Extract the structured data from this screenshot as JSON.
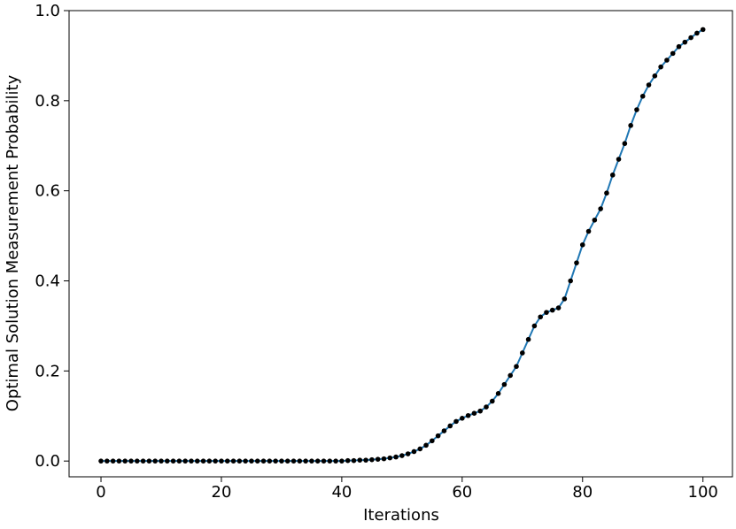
{
  "chart_data": {
    "type": "line",
    "xlabel": "Iterations",
    "ylabel": "Optimal Solution Measurement Probability",
    "x": [
      0,
      1,
      2,
      3,
      4,
      5,
      6,
      7,
      8,
      9,
      10,
      11,
      12,
      13,
      14,
      15,
      16,
      17,
      18,
      19,
      20,
      21,
      22,
      23,
      24,
      25,
      26,
      27,
      28,
      29,
      30,
      31,
      32,
      33,
      34,
      35,
      36,
      37,
      38,
      39,
      40,
      41,
      42,
      43,
      44,
      45,
      46,
      47,
      48,
      49,
      50,
      51,
      52,
      53,
      54,
      55,
      56,
      57,
      58,
      59,
      60,
      61,
      62,
      63,
      64,
      65,
      66,
      67,
      68,
      69,
      70,
      71,
      72,
      73,
      74,
      75,
      76,
      77,
      78,
      79,
      80,
      81,
      82,
      83,
      84,
      85,
      86,
      87,
      88,
      89,
      90,
      91,
      92,
      93,
      94,
      95,
      96,
      97,
      98,
      99,
      100
    ],
    "series": [
      {
        "color": "#1f77b4",
        "marker_color": "#000000",
        "values": [
          0,
          0,
          0,
          0,
          0,
          0,
          0,
          0,
          0,
          0,
          0,
          0,
          0,
          0,
          0,
          0,
          0,
          0,
          0,
          0,
          0,
          0,
          0,
          0,
          0,
          0,
          0,
          0,
          0,
          0,
          0,
          0,
          0,
          0,
          0,
          0,
          0,
          0,
          0,
          0,
          0,
          0.001,
          0.001,
          0.002,
          0.002,
          0.003,
          0.004,
          0.005,
          0.007,
          0.009,
          0.012,
          0.016,
          0.021,
          0.027,
          0.035,
          0.045,
          0.056,
          0.067,
          0.078,
          0.088,
          0.095,
          0.101,
          0.106,
          0.111,
          0.12,
          0.133,
          0.15,
          0.17,
          0.19,
          0.21,
          0.24,
          0.27,
          0.3,
          0.32,
          0.33,
          0.335,
          0.34,
          0.36,
          0.4,
          0.44,
          0.48,
          0.51,
          0.535,
          0.56,
          0.595,
          0.635,
          0.67,
          0.705,
          0.745,
          0.78,
          0.81,
          0.835,
          0.855,
          0.875,
          0.89,
          0.905,
          0.92,
          0.93,
          0.94,
          0.95,
          0.958
        ]
      }
    ],
    "xlim": [
      -5.3,
      104.9
    ],
    "xticks": [
      0,
      20,
      40,
      60,
      80,
      100
    ],
    "ylim": [
      -0.035,
      1.0
    ],
    "yticks": [
      {
        "value": 0,
        "label": "0.0"
      },
      0.2,
      0.4,
      0.6,
      0.8,
      {
        "value": 1,
        "label": "1.0"
      }
    ]
  }
}
